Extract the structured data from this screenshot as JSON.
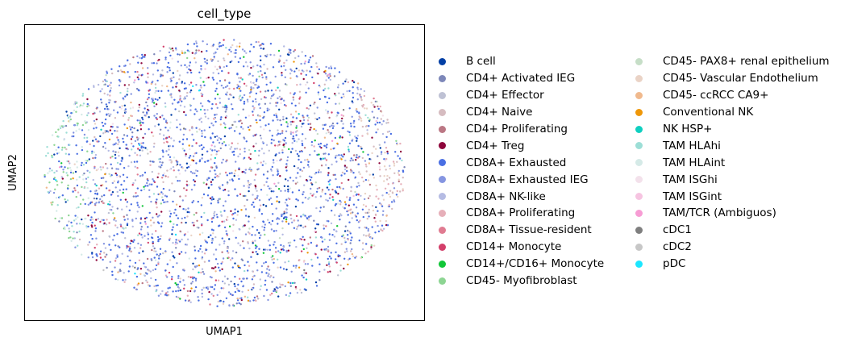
{
  "chart_data": {
    "type": "scatter",
    "title": "cell_type",
    "xlabel": "UMAP1",
    "ylabel": "UMAP2",
    "grid": false,
    "xticks": [],
    "yticks": [],
    "legend_placement": "right, outside plot, two columns",
    "categories": [
      {
        "name": "B cell",
        "color": "#023fa5"
      },
      {
        "name": "CD4+ Activated IEG",
        "color": "#7d87b9"
      },
      {
        "name": "CD4+ Effector",
        "color": "#bec1d4"
      },
      {
        "name": "CD4+ Naive",
        "color": "#d6bcc0"
      },
      {
        "name": "CD4+ Proliferating",
        "color": "#bb7784"
      },
      {
        "name": "CD4+ Treg",
        "color": "#8e063b"
      },
      {
        "name": "CD8A+ Exhausted",
        "color": "#4a6fe3"
      },
      {
        "name": "CD8A+ Exhausted IEG",
        "color": "#8595e1"
      },
      {
        "name": "CD8A+ NK-like",
        "color": "#b5bbe3"
      },
      {
        "name": "CD8A+ Proliferating",
        "color": "#e6afb9"
      },
      {
        "name": "CD8A+ Tissue-resident",
        "color": "#e07b91"
      },
      {
        "name": "CD14+ Monocyte",
        "color": "#d33f6a"
      },
      {
        "name": "CD14+/CD16+ Monocyte",
        "color": "#11c638"
      },
      {
        "name": "CD45- Myofibroblast",
        "color": "#8dd593"
      },
      {
        "name": "CD45- PAX8+ renal epithelium",
        "color": "#c6dec7"
      },
      {
        "name": "CD45- Vascular Endothelium",
        "color": "#ead3c6"
      },
      {
        "name": "CD45- ccRCC CA9+",
        "color": "#f0b98d"
      },
      {
        "name": "Conventional NK",
        "color": "#ef9708"
      },
      {
        "name": "NK HSP+",
        "color": "#0fcfc0"
      },
      {
        "name": "TAM HLAhi",
        "color": "#9cded6"
      },
      {
        "name": "TAM HLAint",
        "color": "#d5eae7"
      },
      {
        "name": "TAM ISGhi",
        "color": "#f3e1eb"
      },
      {
        "name": "TAM ISGint",
        "color": "#f6c4e1"
      },
      {
        "name": "TAM/TCR (Ambiguos)",
        "color": "#f79cd4"
      },
      {
        "name": "cDC1",
        "color": "#7f7f7f"
      },
      {
        "name": "cDC2",
        "color": "#c7c7c7"
      },
      {
        "name": "pDC",
        "color": "#1ce6ff"
      }
    ]
  }
}
